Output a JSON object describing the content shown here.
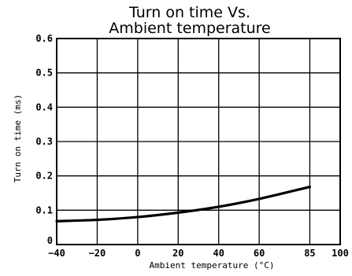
{
  "chart_data": {
    "type": "line",
    "title_lines": [
      "Turn on time Vs.",
      "Ambient temperature"
    ],
    "xlabel": "Ambient temperature (°C)",
    "ylabel": "Turn on time (ms)",
    "xlim": [
      -40,
      100
    ],
    "ylim": [
      0,
      0.6
    ],
    "x_ticks": [
      -40,
      -20,
      0,
      20,
      40,
      60,
      85,
      100
    ],
    "x_tick_labels": [
      "−40",
      "−20",
      "0",
      "20",
      "40",
      "60",
      "85",
      "100"
    ],
    "y_ticks": [
      0,
      0.1,
      0.2,
      0.3,
      0.4,
      0.5,
      0.6
    ],
    "y_tick_labels": [
      "0",
      "0.1",
      "0.2",
      "0.3",
      "0.4",
      "0.5",
      "0.6"
    ],
    "grid": true,
    "series": [
      {
        "x": [
          -40,
          -20,
          0,
          20,
          40,
          60,
          85
        ],
        "y": [
          0.068,
          0.072,
          0.08,
          0.093,
          0.11,
          0.133,
          0.168
        ]
      }
    ]
  }
}
